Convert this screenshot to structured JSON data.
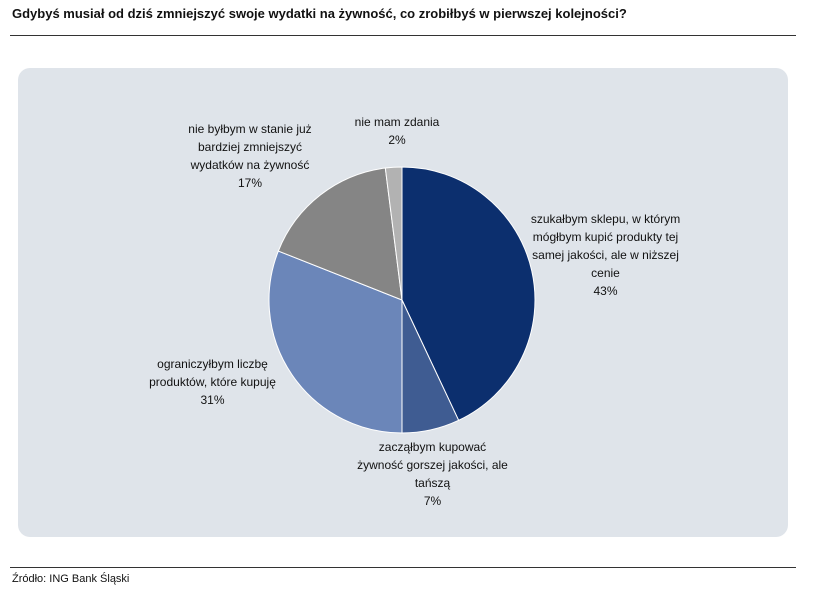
{
  "chart_data": {
    "type": "pie",
    "title": "Gdybyś musiał od dziś zmniejszyć swoje wydatki na żywność, co zrobiłbyś w pierwszej kolejności?",
    "categories": [
      "szukałbym sklepu, w którym mógłbym kupić produkty tej samej jakości, ale w niższej cenie",
      "zacząłbym kupować żywność gorszej jakości, ale tańszą",
      "ograniczyłbym liczbę produktów, które kupuję",
      "nie byłbym w stanie już bardziej zmniejszyć wydatków na żywność",
      "nie mam zdania"
    ],
    "values": [
      43,
      7,
      31,
      17,
      2
    ],
    "value_labels": [
      "43%",
      "7%",
      "31%",
      "17%",
      "2%"
    ],
    "colors": [
      "#0c2f6e",
      "#3f5c92",
      "#6b86b9",
      "#858585",
      "#b2b2b2"
    ],
    "source": "Źródło: ING Bank Śląski"
  }
}
